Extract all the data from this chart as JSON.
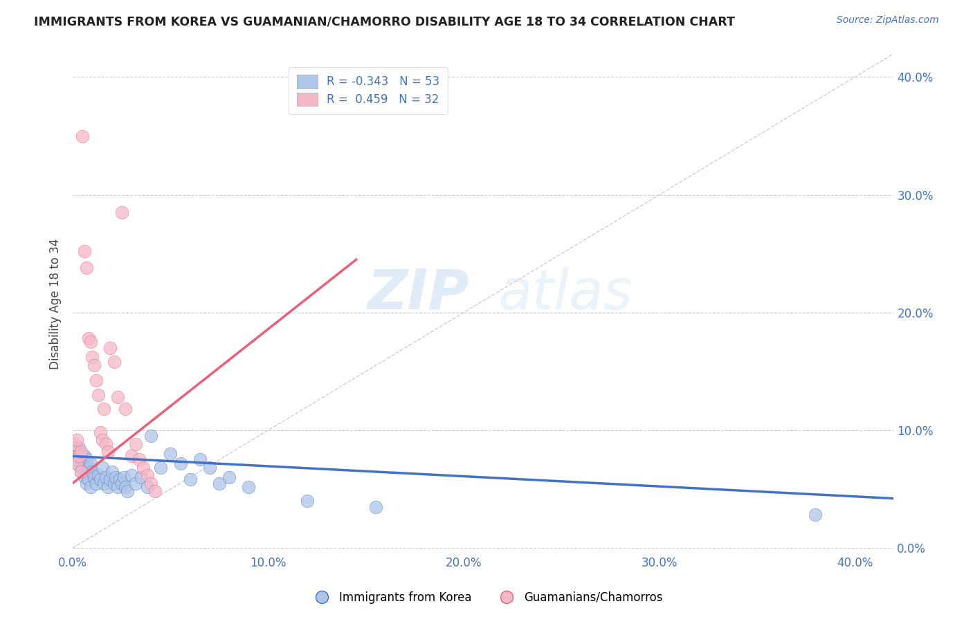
{
  "title": "IMMIGRANTS FROM KOREA VS GUAMANIAN/CHAMORRO DISABILITY AGE 18 TO 34 CORRELATION CHART",
  "source": "Source: ZipAtlas.com",
  "ylabel": "Disability Age 18 to 34",
  "xlim": [
    0.0,
    0.42
  ],
  "ylim": [
    -0.005,
    0.42
  ],
  "legend1_label": "R = -0.343   N = 53",
  "legend2_label": "R =  0.459   N = 32",
  "legend1_color": "#aec6e8",
  "legend2_color": "#f4b8c8",
  "blue_color": "#4472c4",
  "pink_color": "#e8607a",
  "diagonal_color": "#d8c8d8",
  "watermark_zip": "ZIP",
  "watermark_atlas": "atlas",
  "korea_scatter": [
    [
      0.001,
      0.078
    ],
    [
      0.002,
      0.082
    ],
    [
      0.002,
      0.075
    ],
    [
      0.003,
      0.07
    ],
    [
      0.003,
      0.085
    ],
    [
      0.004,
      0.08
    ],
    [
      0.004,
      0.065
    ],
    [
      0.005,
      0.072
    ],
    [
      0.005,
      0.068
    ],
    [
      0.006,
      0.078
    ],
    [
      0.006,
      0.06
    ],
    [
      0.007,
      0.075
    ],
    [
      0.007,
      0.055
    ],
    [
      0.008,
      0.068
    ],
    [
      0.008,
      0.058
    ],
    [
      0.009,
      0.072
    ],
    [
      0.009,
      0.052
    ],
    [
      0.01,
      0.065
    ],
    [
      0.011,
      0.06
    ],
    [
      0.012,
      0.055
    ],
    [
      0.013,
      0.062
    ],
    [
      0.014,
      0.058
    ],
    [
      0.015,
      0.068
    ],
    [
      0.016,
      0.055
    ],
    [
      0.017,
      0.06
    ],
    [
      0.018,
      0.052
    ],
    [
      0.019,
      0.058
    ],
    [
      0.02,
      0.065
    ],
    [
      0.021,
      0.055
    ],
    [
      0.022,
      0.06
    ],
    [
      0.023,
      0.052
    ],
    [
      0.024,
      0.058
    ],
    [
      0.025,
      0.055
    ],
    [
      0.026,
      0.06
    ],
    [
      0.027,
      0.052
    ],
    [
      0.028,
      0.048
    ],
    [
      0.03,
      0.062
    ],
    [
      0.032,
      0.055
    ],
    [
      0.035,
      0.06
    ],
    [
      0.038,
      0.052
    ],
    [
      0.04,
      0.095
    ],
    [
      0.045,
      0.068
    ],
    [
      0.05,
      0.08
    ],
    [
      0.055,
      0.072
    ],
    [
      0.06,
      0.058
    ],
    [
      0.065,
      0.075
    ],
    [
      0.07,
      0.068
    ],
    [
      0.075,
      0.055
    ],
    [
      0.08,
      0.06
    ],
    [
      0.09,
      0.052
    ],
    [
      0.12,
      0.04
    ],
    [
      0.155,
      0.035
    ],
    [
      0.38,
      0.028
    ]
  ],
  "guam_scatter": [
    [
      0.001,
      0.088
    ],
    [
      0.002,
      0.092
    ],
    [
      0.002,
      0.072
    ],
    [
      0.003,
      0.078
    ],
    [
      0.004,
      0.082
    ],
    [
      0.004,
      0.065
    ],
    [
      0.005,
      0.35
    ],
    [
      0.006,
      0.252
    ],
    [
      0.007,
      0.238
    ],
    [
      0.008,
      0.178
    ],
    [
      0.009,
      0.175
    ],
    [
      0.01,
      0.162
    ],
    [
      0.011,
      0.155
    ],
    [
      0.012,
      0.142
    ],
    [
      0.013,
      0.13
    ],
    [
      0.014,
      0.098
    ],
    [
      0.015,
      0.092
    ],
    [
      0.016,
      0.118
    ],
    [
      0.017,
      0.088
    ],
    [
      0.018,
      0.082
    ],
    [
      0.019,
      0.17
    ],
    [
      0.021,
      0.158
    ],
    [
      0.023,
      0.128
    ],
    [
      0.025,
      0.285
    ],
    [
      0.027,
      0.118
    ],
    [
      0.03,
      0.078
    ],
    [
      0.032,
      0.088
    ],
    [
      0.034,
      0.075
    ],
    [
      0.036,
      0.068
    ],
    [
      0.038,
      0.062
    ],
    [
      0.04,
      0.055
    ],
    [
      0.042,
      0.048
    ]
  ],
  "korea_line_x": [
    0.0,
    0.42
  ],
  "korea_line_y": [
    0.078,
    0.042
  ],
  "guam_line_x": [
    0.0,
    0.145
  ],
  "guam_line_y": [
    0.055,
    0.245
  ],
  "diagonal_line": [
    [
      0.0,
      0.0
    ],
    [
      0.42,
      0.42
    ]
  ]
}
